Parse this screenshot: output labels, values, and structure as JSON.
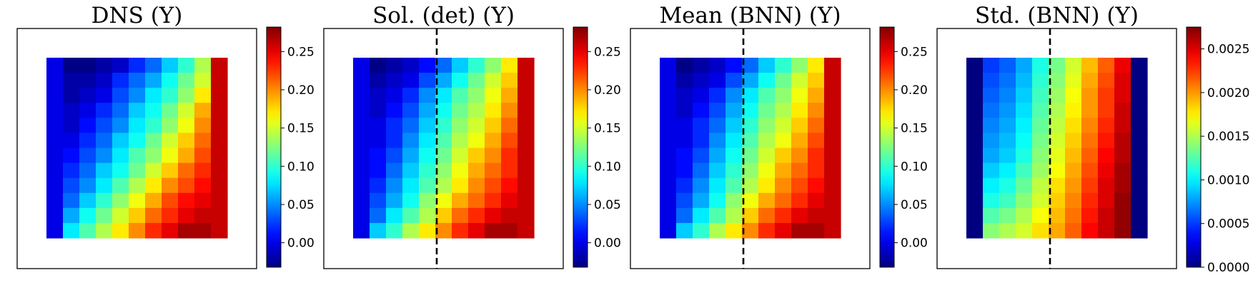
{
  "chart_data": [
    {
      "type": "heatmap",
      "title": "DNS (Y)",
      "colorbar": {
        "min": -0.032,
        "max": 0.282,
        "ticks": [
          0.0,
          0.05,
          0.1,
          0.15,
          0.2,
          0.25
        ],
        "tick_labels": [
          "0.00",
          "0.05",
          "0.10",
          "0.15",
          "0.20",
          "0.25"
        ]
      },
      "dashed_line": false,
      "grid": [
        [
          0.0,
          -0.03,
          -0.03,
          -0.02,
          -0.01,
          0.02,
          0.04,
          0.07,
          0.1,
          0.14,
          0.26
        ],
        [
          0.0,
          -0.02,
          -0.02,
          -0.01,
          0.02,
          0.04,
          0.06,
          0.09,
          0.12,
          0.15,
          0.26
        ],
        [
          0.0,
          -0.02,
          -0.01,
          0.0,
          0.03,
          0.05,
          0.08,
          0.1,
          0.13,
          0.17,
          0.26
        ],
        [
          0.0,
          -0.01,
          0.0,
          0.02,
          0.04,
          0.07,
          0.09,
          0.12,
          0.15,
          0.19,
          0.26
        ],
        [
          0.0,
          -0.01,
          0.01,
          0.03,
          0.05,
          0.08,
          0.1,
          0.13,
          0.16,
          0.2,
          0.26
        ],
        [
          0.0,
          0.0,
          0.02,
          0.04,
          0.07,
          0.09,
          0.12,
          0.15,
          0.18,
          0.21,
          0.26
        ],
        [
          0.0,
          0.01,
          0.03,
          0.05,
          0.08,
          0.11,
          0.13,
          0.16,
          0.19,
          0.22,
          0.26
        ],
        [
          0.0,
          0.02,
          0.04,
          0.07,
          0.09,
          0.12,
          0.15,
          0.18,
          0.21,
          0.23,
          0.26
        ],
        [
          0.0,
          0.03,
          0.05,
          0.08,
          0.11,
          0.14,
          0.17,
          0.2,
          0.22,
          0.24,
          0.26
        ],
        [
          0.0,
          0.04,
          0.07,
          0.1,
          0.13,
          0.16,
          0.19,
          0.22,
          0.24,
          0.25,
          0.26
        ],
        [
          0.0,
          0.06,
          0.09,
          0.12,
          0.15,
          0.18,
          0.21,
          0.23,
          0.25,
          0.26,
          0.26
        ],
        [
          0.0,
          0.08,
          0.11,
          0.14,
          0.17,
          0.2,
          0.23,
          0.25,
          0.27,
          0.27,
          0.26
        ]
      ]
    },
    {
      "type": "heatmap",
      "title": "Sol. (det) (Y)",
      "colorbar": {
        "min": -0.032,
        "max": 0.282,
        "ticks": [
          0.0,
          0.05,
          0.1,
          0.15,
          0.2,
          0.25
        ],
        "tick_labels": [
          "0.00",
          "0.05",
          "0.10",
          "0.15",
          "0.20",
          "0.25"
        ]
      },
      "dashed_line": true,
      "grid": [
        [
          0.0,
          -0.03,
          -0.02,
          -0.01,
          0.01,
          0.04,
          0.07,
          0.1,
          0.13,
          0.17,
          0.26
        ],
        [
          0.0,
          -0.02,
          -0.01,
          0.0,
          0.03,
          0.06,
          0.09,
          0.12,
          0.15,
          0.18,
          0.26
        ],
        [
          0.0,
          -0.01,
          0.0,
          0.02,
          0.05,
          0.08,
          0.11,
          0.13,
          0.16,
          0.19,
          0.26
        ],
        [
          0.0,
          -0.01,
          0.01,
          0.03,
          0.06,
          0.09,
          0.12,
          0.14,
          0.17,
          0.2,
          0.26
        ],
        [
          0.0,
          0.0,
          0.02,
          0.04,
          0.07,
          0.1,
          0.13,
          0.15,
          0.18,
          0.21,
          0.26
        ],
        [
          0.0,
          0.0,
          0.02,
          0.05,
          0.08,
          0.11,
          0.14,
          0.16,
          0.19,
          0.22,
          0.26
        ],
        [
          0.0,
          0.01,
          0.03,
          0.06,
          0.09,
          0.12,
          0.15,
          0.18,
          0.2,
          0.23,
          0.26
        ],
        [
          0.0,
          0.01,
          0.04,
          0.07,
          0.1,
          0.13,
          0.16,
          0.19,
          0.21,
          0.23,
          0.26
        ],
        [
          0.0,
          0.02,
          0.05,
          0.08,
          0.11,
          0.14,
          0.17,
          0.2,
          0.22,
          0.24,
          0.26
        ],
        [
          0.0,
          0.03,
          0.06,
          0.09,
          0.13,
          0.16,
          0.19,
          0.21,
          0.23,
          0.25,
          0.26
        ],
        [
          0.0,
          0.04,
          0.08,
          0.11,
          0.14,
          0.18,
          0.21,
          0.23,
          0.25,
          0.26,
          0.26
        ],
        [
          0.0,
          0.07,
          0.1,
          0.14,
          0.17,
          0.2,
          0.23,
          0.25,
          0.27,
          0.27,
          0.26
        ]
      ]
    },
    {
      "type": "heatmap",
      "title": "Mean (BNN) (Y)",
      "colorbar": {
        "min": -0.032,
        "max": 0.282,
        "ticks": [
          0.0,
          0.05,
          0.1,
          0.15,
          0.2,
          0.25
        ],
        "tick_labels": [
          "0.00",
          "0.05",
          "0.10",
          "0.15",
          "0.20",
          "0.25"
        ]
      },
      "dashed_line": true,
      "grid": [
        [
          0.0,
          -0.03,
          -0.02,
          -0.01,
          0.01,
          0.04,
          0.07,
          0.1,
          0.13,
          0.17,
          0.26
        ],
        [
          0.0,
          -0.02,
          -0.01,
          0.0,
          0.03,
          0.06,
          0.09,
          0.12,
          0.15,
          0.18,
          0.26
        ],
        [
          0.0,
          -0.01,
          0.0,
          0.02,
          0.05,
          0.08,
          0.11,
          0.13,
          0.16,
          0.19,
          0.26
        ],
        [
          0.0,
          -0.01,
          0.01,
          0.03,
          0.06,
          0.09,
          0.12,
          0.14,
          0.17,
          0.2,
          0.26
        ],
        [
          0.0,
          0.0,
          0.02,
          0.04,
          0.07,
          0.1,
          0.13,
          0.15,
          0.18,
          0.21,
          0.26
        ],
        [
          0.0,
          0.0,
          0.02,
          0.05,
          0.08,
          0.11,
          0.14,
          0.16,
          0.19,
          0.22,
          0.26
        ],
        [
          0.0,
          0.01,
          0.03,
          0.06,
          0.09,
          0.12,
          0.15,
          0.18,
          0.2,
          0.23,
          0.26
        ],
        [
          0.0,
          0.01,
          0.04,
          0.07,
          0.1,
          0.13,
          0.16,
          0.19,
          0.21,
          0.23,
          0.26
        ],
        [
          0.0,
          0.02,
          0.05,
          0.08,
          0.11,
          0.14,
          0.17,
          0.2,
          0.22,
          0.24,
          0.26
        ],
        [
          0.0,
          0.03,
          0.06,
          0.09,
          0.13,
          0.16,
          0.19,
          0.21,
          0.23,
          0.25,
          0.26
        ],
        [
          0.0,
          0.04,
          0.08,
          0.11,
          0.14,
          0.18,
          0.21,
          0.23,
          0.25,
          0.26,
          0.26
        ],
        [
          0.0,
          0.07,
          0.1,
          0.14,
          0.17,
          0.2,
          0.23,
          0.25,
          0.27,
          0.27,
          0.26
        ]
      ]
    },
    {
      "type": "heatmap",
      "title": "Std. (BNN) (Y)",
      "colorbar": {
        "min": 0.0,
        "max": 0.00275,
        "ticks": [
          0.0,
          0.0005,
          0.001,
          0.0015,
          0.002,
          0.0025
        ],
        "tick_labels": [
          "0.0000",
          "0.0005",
          "0.0010",
          "0.0015",
          "0.0020",
          "0.0025"
        ]
      },
      "dashed_line": true,
      "grid": [
        [
          0.0,
          0.0005,
          0.0006,
          0.0008,
          0.0011,
          0.00135,
          0.0016,
          0.0019,
          0.00215,
          0.00245,
          0.0
        ],
        [
          0.0,
          0.00055,
          0.00065,
          0.00085,
          0.00115,
          0.0014,
          0.00165,
          0.00195,
          0.0022,
          0.0025,
          0.0
        ],
        [
          0.0,
          0.0006,
          0.0007,
          0.0009,
          0.0012,
          0.00145,
          0.0017,
          0.002,
          0.00225,
          0.0025,
          0.0
        ],
        [
          0.0,
          0.00065,
          0.00075,
          0.00095,
          0.00125,
          0.0015,
          0.00175,
          0.002,
          0.00225,
          0.00255,
          0.0
        ],
        [
          0.0,
          0.0007,
          0.0008,
          0.001,
          0.0013,
          0.00155,
          0.0018,
          0.00205,
          0.0023,
          0.00255,
          0.0
        ],
        [
          0.0,
          0.00075,
          0.00085,
          0.00105,
          0.00135,
          0.0016,
          0.00185,
          0.0021,
          0.00235,
          0.0026,
          0.0
        ],
        [
          0.0,
          0.0008,
          0.0009,
          0.0011,
          0.0014,
          0.00165,
          0.0019,
          0.00215,
          0.0024,
          0.0026,
          0.0
        ],
        [
          0.0,
          0.0009,
          0.001,
          0.0012,
          0.00145,
          0.0017,
          0.00195,
          0.0022,
          0.00245,
          0.00265,
          0.0
        ],
        [
          0.0,
          0.001,
          0.0011,
          0.0013,
          0.00155,
          0.0018,
          0.002,
          0.00225,
          0.0025,
          0.00265,
          0.0
        ],
        [
          0.0,
          0.0011,
          0.0012,
          0.0014,
          0.0016,
          0.00185,
          0.00205,
          0.0023,
          0.0025,
          0.0027,
          0.0
        ],
        [
          0.0,
          0.00125,
          0.00135,
          0.0015,
          0.0017,
          0.0019,
          0.0021,
          0.00235,
          0.00255,
          0.0027,
          0.0
        ],
        [
          0.0,
          0.0014,
          0.0015,
          0.0016,
          0.0018,
          0.00195,
          0.00215,
          0.0024,
          0.00255,
          0.0027,
          0.0
        ]
      ]
    }
  ]
}
